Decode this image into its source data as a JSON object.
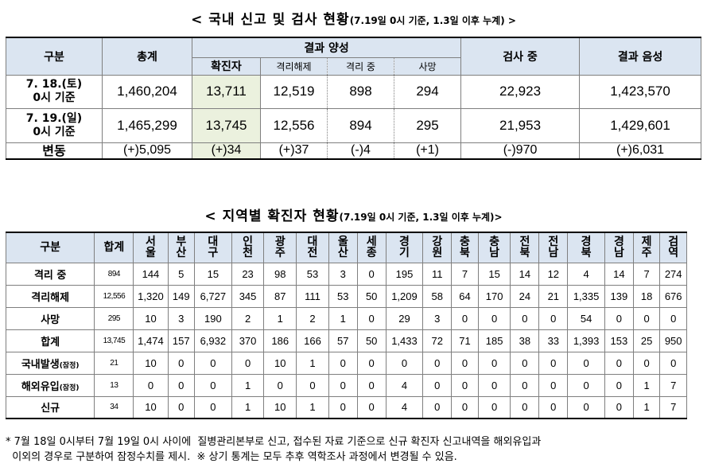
{
  "title1_main": "< 국내 신고 및 검사 현황",
  "title1_sub": "(7.19일 0시 기준, 1.3일 이후 누계) >",
  "top": {
    "h_div": "구분",
    "h_total": "총계",
    "h_positive": "결과 양성",
    "h_confirmed": "확진자",
    "h_released": "격리해제",
    "h_isolation": "격리 중",
    "h_death": "사망",
    "h_testing": "검사 중",
    "h_negative": "결과 음성",
    "rows": [
      {
        "label1": "7. 18.(토)",
        "label2": "0시 기준",
        "total": "1,460,204",
        "confirmed": "13,711",
        "released": "12,519",
        "isolation": "898",
        "death": "294",
        "testing": "22,923",
        "negative": "1,423,570"
      },
      {
        "label1": "7. 19.(일)",
        "label2": "0시 기준",
        "total": "1,465,299",
        "confirmed": "13,745",
        "released": "12,556",
        "isolation": "894",
        "death": "295",
        "testing": "21,953",
        "negative": "1,429,601"
      },
      {
        "label1": "변동",
        "label2": "",
        "total": "(+)5,095",
        "confirmed": "(+)34",
        "released": "(+)37",
        "isolation": "(-)4",
        "death": "(+1)",
        "testing": "(-)970",
        "negative": "(+)6,031"
      }
    ]
  },
  "title2_main": "< 지역별 확진자 현황",
  "title2_sub": "(7.19일 0시 기준, 1.3일 이후 누계)>",
  "bottom": {
    "h_div": "구분",
    "h_total": "합계",
    "regions": [
      [
        "서",
        "울"
      ],
      [
        "부",
        "산"
      ],
      [
        "대",
        "구"
      ],
      [
        "인",
        "천"
      ],
      [
        "광",
        "주"
      ],
      [
        "대",
        "전"
      ],
      [
        "울",
        "산"
      ],
      [
        "세",
        "종"
      ],
      [
        "경",
        "기"
      ],
      [
        "강",
        "원"
      ],
      [
        "충",
        "북"
      ],
      [
        "충",
        "남"
      ],
      [
        "전",
        "북"
      ],
      [
        "전",
        "남"
      ],
      [
        "경",
        "북"
      ],
      [
        "경",
        "남"
      ],
      [
        "제",
        "주"
      ],
      [
        "검",
        "역"
      ]
    ],
    "rows": [
      {
        "label": "격리 중",
        "label_small": "",
        "total": "894",
        "values": [
          "144",
          "5",
          "15",
          "23",
          "98",
          "53",
          "3",
          "0",
          "195",
          "11",
          "7",
          "15",
          "14",
          "12",
          "4",
          "14",
          "7",
          "274"
        ]
      },
      {
        "label": "격리해제",
        "label_small": "",
        "total": "12,556",
        "values": [
          "1,320",
          "149",
          "6,727",
          "345",
          "87",
          "111",
          "53",
          "50",
          "1,209",
          "58",
          "64",
          "170",
          "24",
          "21",
          "1,335",
          "139",
          "18",
          "676"
        ]
      },
      {
        "label": "사망",
        "label_small": "",
        "total": "295",
        "values": [
          "10",
          "3",
          "190",
          "2",
          "1",
          "2",
          "1",
          "0",
          "29",
          "3",
          "0",
          "0",
          "0",
          "0",
          "54",
          "0",
          "0",
          "0"
        ]
      },
      {
        "label": "합계",
        "label_small": "",
        "total": "13,745",
        "values": [
          "1,474",
          "157",
          "6,932",
          "370",
          "186",
          "166",
          "57",
          "50",
          "1,433",
          "72",
          "71",
          "185",
          "38",
          "33",
          "1,393",
          "153",
          "25",
          "950"
        ]
      },
      {
        "label": "국내발생",
        "label_small": "(잠정)",
        "total": "21",
        "values": [
          "10",
          "0",
          "0",
          "0",
          "10",
          "1",
          "0",
          "0",
          "0",
          "0",
          "0",
          "0",
          "0",
          "0",
          "0",
          "0",
          "0",
          "0"
        ]
      },
      {
        "label": "해외유입",
        "label_small": "(잠정)",
        "total": "13",
        "values": [
          "0",
          "0",
          "0",
          "1",
          "0",
          "0",
          "0",
          "0",
          "4",
          "0",
          "0",
          "0",
          "0",
          "0",
          "0",
          "0",
          "1",
          "7"
        ]
      },
      {
        "label": "신규",
        "label_small": "",
        "total": "34",
        "values": [
          "10",
          "0",
          "0",
          "1",
          "10",
          "1",
          "0",
          "0",
          "4",
          "0",
          "0",
          "0",
          "0",
          "0",
          "0",
          "0",
          "1",
          "7"
        ]
      }
    ]
  },
  "note_line1": "* 7월 18일 0시부터 7월 19일 0시 사이에  질병관리본부로 신고, 접수된 자료 기준으로 신규 확진자 신고내역을 해외유입과",
  "note_line2": "  이외의 경우로 구분하여 잠정수치를 제시.  ※ 상기 통계는 모두 추후 역학조사 과정에서 변경될 수 있음."
}
